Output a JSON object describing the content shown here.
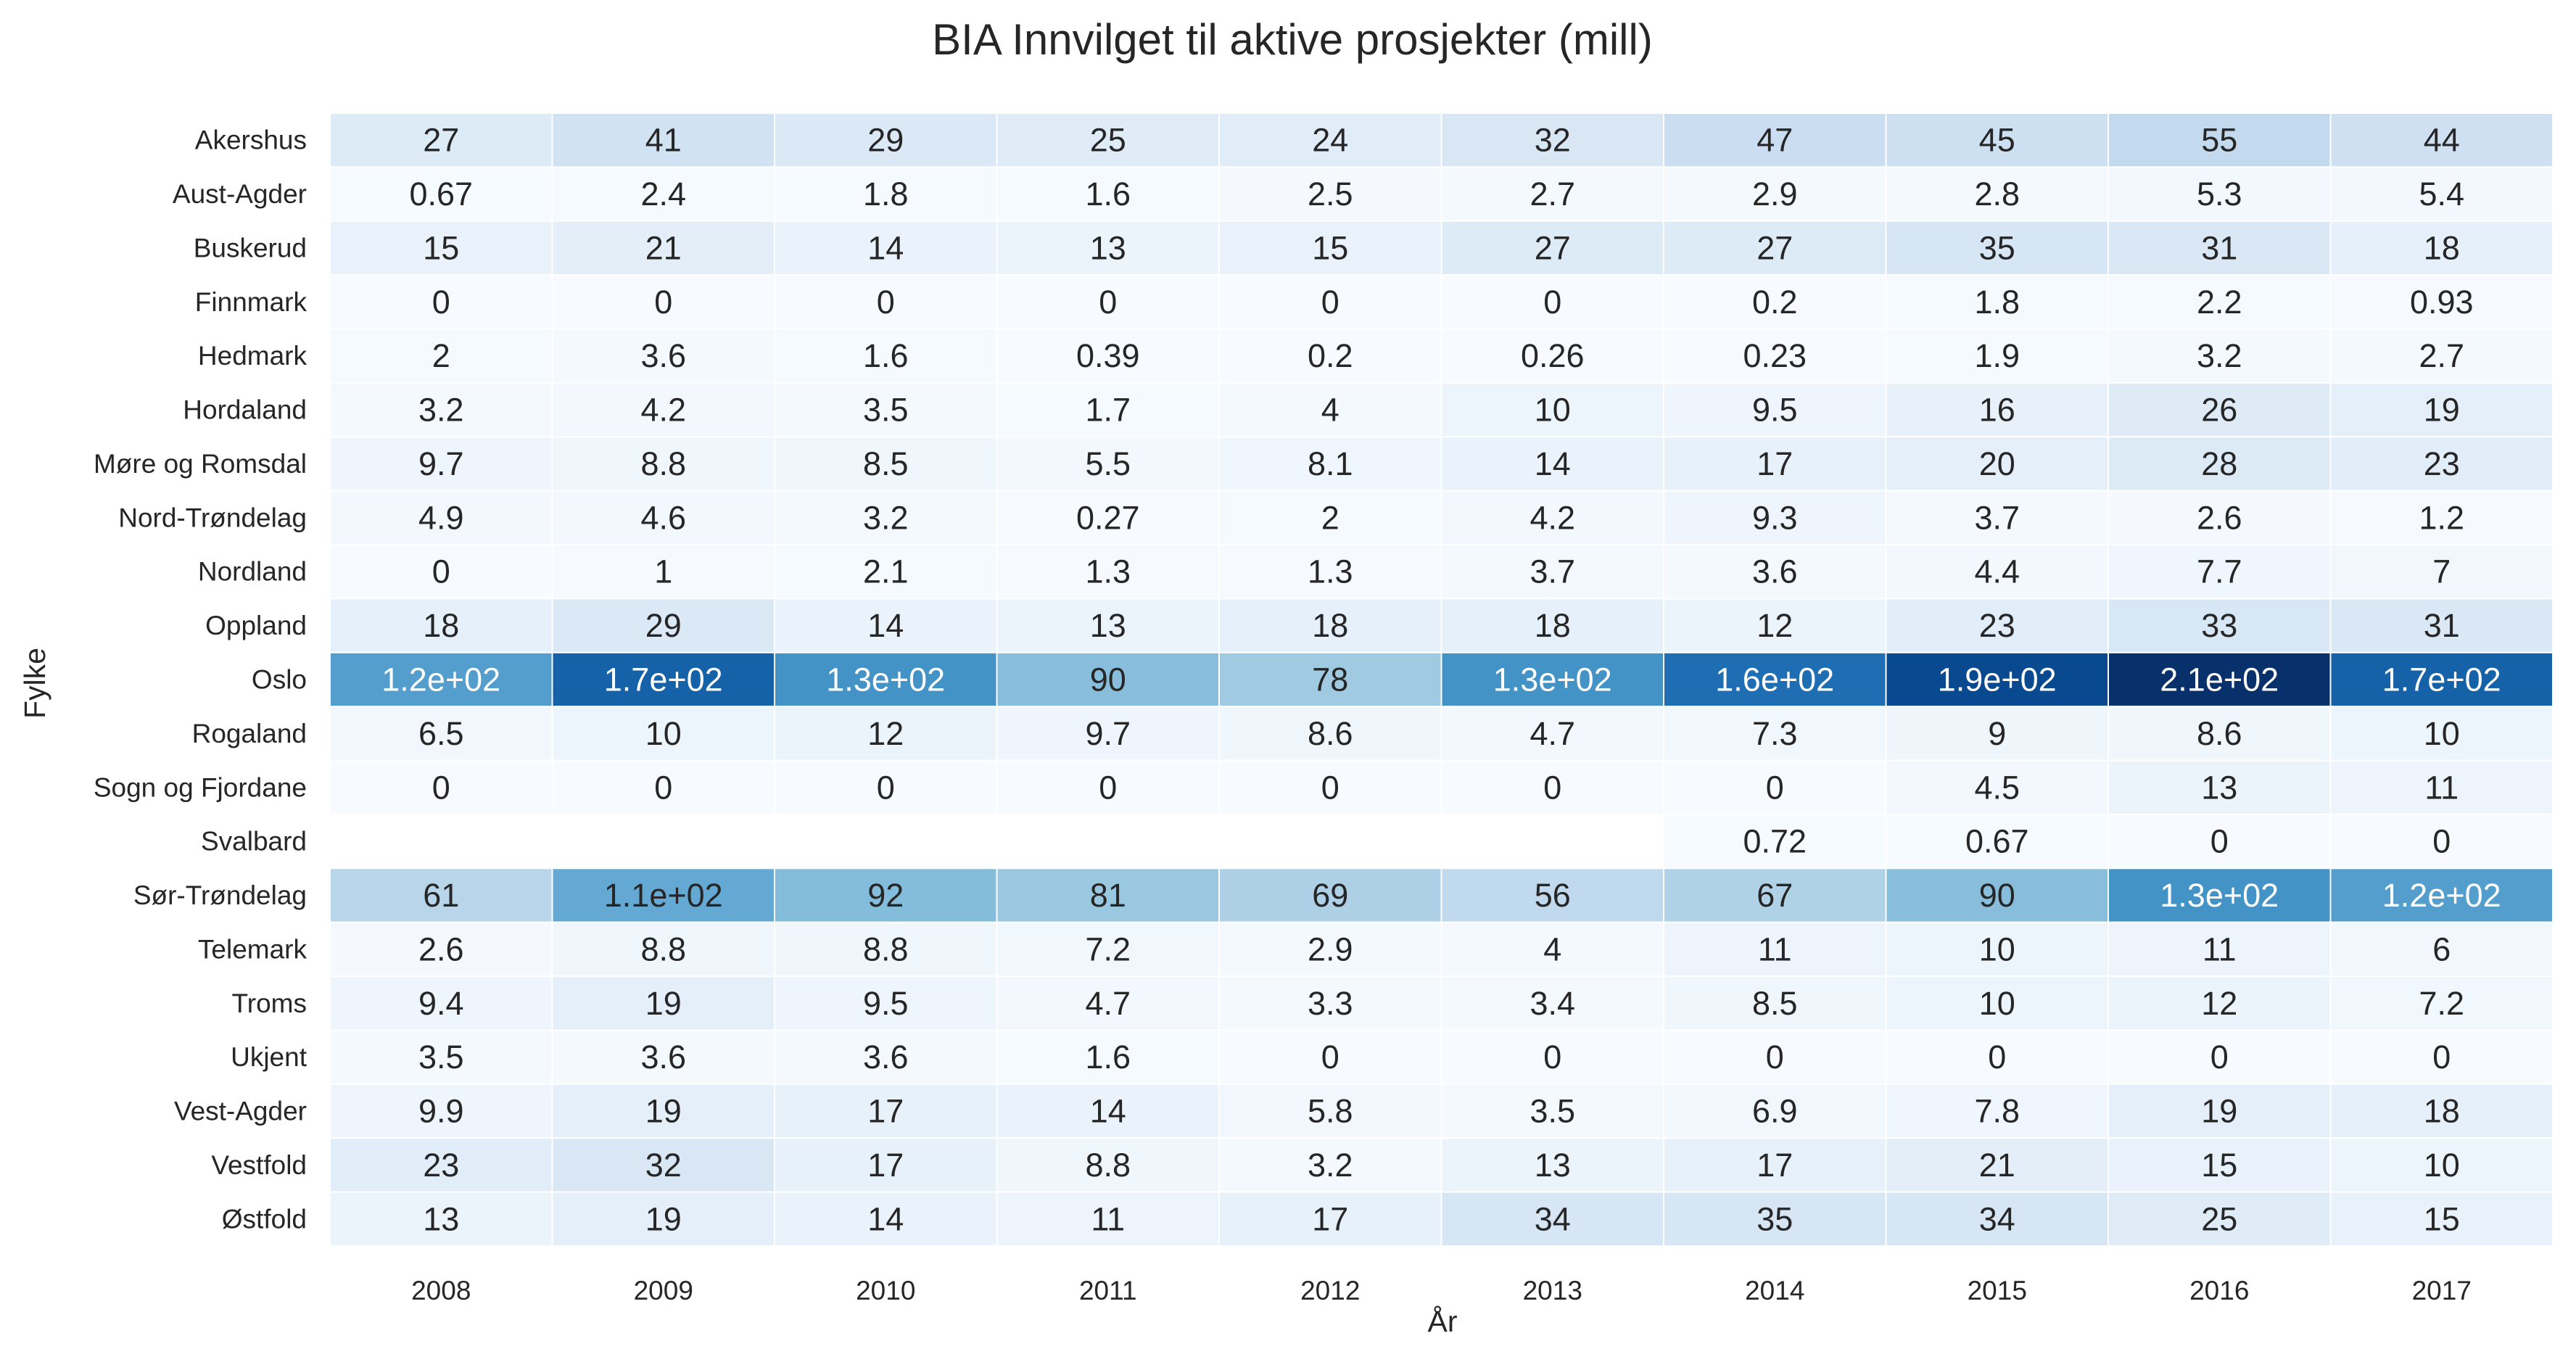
{
  "chart_data": {
    "type": "heatmap",
    "title": "BIA Innvilget til aktive prosjekter (mill)",
    "xlabel": "År",
    "ylabel": "Fylke",
    "x": [
      "2008",
      "2009",
      "2010",
      "2011",
      "2012",
      "2013",
      "2014",
      "2015",
      "2016",
      "2017"
    ],
    "y": [
      "Akershus",
      "Aust-Agder",
      "Buskerud",
      "Finnmark",
      "Hedmark",
      "Hordaland",
      "Møre og Romsdal",
      "Nord-Trøndelag",
      "Nordland",
      "Oppland",
      "Oslo",
      "Rogaland",
      "Sogn og Fjordane",
      "Svalbard",
      "Sør-Trøndelag",
      "Telemark",
      "Troms",
      "Ukjent",
      "Vest-Agder",
      "Vestfold",
      "Østfold"
    ],
    "values": [
      [
        27,
        41,
        29,
        25,
        24,
        32,
        47,
        45,
        55,
        44
      ],
      [
        0.67,
        2.4,
        1.8,
        1.6,
        2.5,
        2.7,
        2.9,
        2.8,
        5.3,
        5.4
      ],
      [
        15,
        21,
        14,
        13,
        15,
        27,
        27,
        35,
        31,
        18
      ],
      [
        0,
        0,
        0,
        0,
        0,
        0,
        0.2,
        1.8,
        2.2,
        0.93
      ],
      [
        2,
        3.6,
        1.6,
        0.39,
        0.2,
        0.26,
        0.23,
        1.9,
        3.2,
        2.7
      ],
      [
        3.2,
        4.2,
        3.5,
        1.7,
        4,
        10,
        9.5,
        16,
        26,
        19
      ],
      [
        9.7,
        8.8,
        8.5,
        5.5,
        8.1,
        14,
        17,
        20,
        28,
        23
      ],
      [
        4.9,
        4.6,
        3.2,
        0.27,
        2,
        4.2,
        9.3,
        3.7,
        2.6,
        1.2
      ],
      [
        0,
        1,
        2.1,
        1.3,
        1.3,
        3.7,
        3.6,
        4.4,
        7.7,
        7
      ],
      [
        18,
        29,
        14,
        13,
        18,
        18,
        12,
        23,
        33,
        31
      ],
      [
        120,
        170,
        130,
        90,
        78,
        130,
        160,
        190,
        210,
        170
      ],
      [
        6.5,
        10,
        12,
        9.7,
        8.6,
        4.7,
        7.3,
        9,
        8.6,
        10
      ],
      [
        0,
        0,
        0,
        0,
        0,
        0,
        0,
        4.5,
        13,
        11
      ],
      [
        null,
        null,
        null,
        null,
        null,
        null,
        0.72,
        0.67,
        0,
        0
      ],
      [
        61,
        110,
        92,
        81,
        69,
        56,
        67,
        90,
        130,
        120
      ],
      [
        2.6,
        8.8,
        8.8,
        7.2,
        2.9,
        4,
        11,
        10,
        11,
        6
      ],
      [
        9.4,
        19,
        9.5,
        4.7,
        3.3,
        3.4,
        8.5,
        10,
        12,
        7.2
      ],
      [
        3.5,
        3.6,
        3.6,
        1.6,
        0,
        0,
        0,
        0,
        0,
        0
      ],
      [
        9.9,
        19,
        17,
        14,
        5.8,
        3.5,
        6.9,
        7.8,
        19,
        18
      ],
      [
        23,
        32,
        17,
        8.8,
        3.2,
        13,
        17,
        21,
        15,
        10
      ],
      [
        13,
        19,
        14,
        11,
        17,
        34,
        35,
        34,
        25,
        15
      ]
    ],
    "labels": [
      [
        "27",
        "41",
        "29",
        "25",
        "24",
        "32",
        "47",
        "45",
        "55",
        "44"
      ],
      [
        "0.67",
        "2.4",
        "1.8",
        "1.6",
        "2.5",
        "2.7",
        "2.9",
        "2.8",
        "5.3",
        "5.4"
      ],
      [
        "15",
        "21",
        "14",
        "13",
        "15",
        "27",
        "27",
        "35",
        "31",
        "18"
      ],
      [
        "0",
        "0",
        "0",
        "0",
        "0",
        "0",
        "0.2",
        "1.8",
        "2.2",
        "0.93"
      ],
      [
        "2",
        "3.6",
        "1.6",
        "0.39",
        "0.2",
        "0.26",
        "0.23",
        "1.9",
        "3.2",
        "2.7"
      ],
      [
        "3.2",
        "4.2",
        "3.5",
        "1.7",
        "4",
        "10",
        "9.5",
        "16",
        "26",
        "19"
      ],
      [
        "9.7",
        "8.8",
        "8.5",
        "5.5",
        "8.1",
        "14",
        "17",
        "20",
        "28",
        "23"
      ],
      [
        "4.9",
        "4.6",
        "3.2",
        "0.27",
        "2",
        "4.2",
        "9.3",
        "3.7",
        "2.6",
        "1.2"
      ],
      [
        "0",
        "1",
        "2.1",
        "1.3",
        "1.3",
        "3.7",
        "3.6",
        "4.4",
        "7.7",
        "7"
      ],
      [
        "18",
        "29",
        "14",
        "13",
        "18",
        "18",
        "12",
        "23",
        "33",
        "31"
      ],
      [
        "1.2e+02",
        "1.7e+02",
        "1.3e+02",
        "90",
        "78",
        "1.3e+02",
        "1.6e+02",
        "1.9e+02",
        "2.1e+02",
        "1.7e+02"
      ],
      [
        "6.5",
        "10",
        "12",
        "9.7",
        "8.6",
        "4.7",
        "7.3",
        "9",
        "8.6",
        "10"
      ],
      [
        "0",
        "0",
        "0",
        "0",
        "0",
        "0",
        "0",
        "4.5",
        "13",
        "11"
      ],
      [
        null,
        null,
        null,
        null,
        null,
        null,
        "0.72",
        "0.67",
        "0",
        "0"
      ],
      [
        "61",
        "1.1e+02",
        "92",
        "81",
        "69",
        "56",
        "67",
        "90",
        "1.3e+02",
        "1.2e+02"
      ],
      [
        "2.6",
        "8.8",
        "8.8",
        "7.2",
        "2.9",
        "4",
        "11",
        "10",
        "11",
        "6"
      ],
      [
        "9.4",
        "19",
        "9.5",
        "4.7",
        "3.3",
        "3.4",
        "8.5",
        "10",
        "12",
        "7.2"
      ],
      [
        "3.5",
        "3.6",
        "3.6",
        "1.6",
        "0",
        "0",
        "0",
        "0",
        "0",
        "0"
      ],
      [
        "9.9",
        "19",
        "17",
        "14",
        "5.8",
        "3.5",
        "6.9",
        "7.8",
        "19",
        "18"
      ],
      [
        "23",
        "32",
        "17",
        "8.8",
        "3.2",
        "13",
        "17",
        "21",
        "15",
        "10"
      ],
      [
        "13",
        "19",
        "14",
        "11",
        "17",
        "34",
        "35",
        "34",
        "25",
        "15"
      ]
    ],
    "colormap": "Blues",
    "vmin": 0,
    "vmax": 210,
    "grid": false,
    "legend": "none",
    "cell_border_color": "#ffffff"
  }
}
